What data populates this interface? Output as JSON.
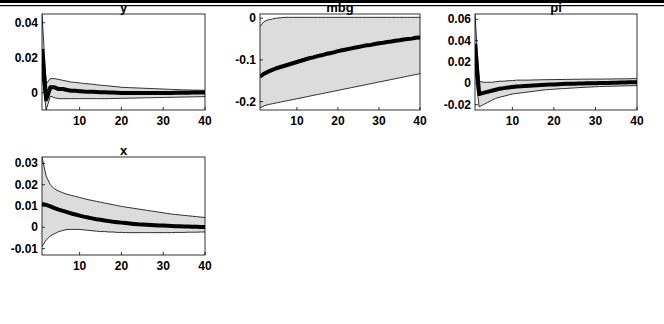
{
  "chart_data": [
    {
      "type": "line",
      "title": "y",
      "x": [
        1,
        2,
        3,
        4,
        5,
        6,
        7,
        8,
        9,
        10,
        11,
        12,
        13,
        14,
        15,
        16,
        17,
        18,
        19,
        20,
        21,
        22,
        23,
        24,
        25,
        26,
        27,
        28,
        29,
        30,
        31,
        32,
        33,
        34,
        35,
        36,
        37,
        38,
        39,
        40
      ],
      "xlim": [
        1,
        40
      ],
      "xticks": [
        10,
        20,
        30,
        40
      ],
      "ylim": [
        -0.01,
        0.045
      ],
      "yticks": [
        0,
        0.02,
        0.04
      ],
      "series": [
        {
          "color": "#000000",
          "values": [
            0.025,
            -0.004,
            0.003,
            0.003,
            0.002,
            0.002,
            0.0015,
            0.001,
            0.001,
            0.0008,
            0.0006,
            0.0005,
            0.0004,
            0.0003,
            0.0002,
            0.0001,
            0,
            0,
            -0.0001,
            -0.0002,
            -0.0002,
            -0.0003,
            -0.0003,
            -0.0003,
            -0.0003,
            -0.0003,
            -0.0003,
            -0.0003,
            -0.0002,
            -0.0002,
            -0.0002,
            -0.0002,
            -0.0001,
            -0.0001,
            -0.0001,
            -0.0001,
            0,
            0,
            0,
            0
          ],
          "upper": [
            0.045,
            0.005,
            0.008,
            0.008,
            0.0075,
            0.007,
            0.0065,
            0.006,
            0.0058,
            0.0055,
            0.0052,
            0.005,
            0.0048,
            0.0045,
            0.0042,
            0.004,
            0.0038,
            0.0035,
            0.0033,
            0.003,
            0.0029,
            0.0028,
            0.0027,
            0.0026,
            0.0025,
            0.0024,
            0.0023,
            0.0022,
            0.0021,
            0.002,
            0.0019,
            0.0018,
            0.0017,
            0.0016,
            0.0015,
            0.0015,
            0.0014,
            0.0014,
            0.0013,
            0.0013
          ],
          "lower": [
            0.01,
            -0.01,
            -0.002,
            -0.003,
            -0.0035,
            -0.0035,
            -0.0035,
            -0.0035,
            -0.0035,
            -0.0035,
            -0.0035,
            -0.0035,
            -0.0035,
            -0.0035,
            -0.0035,
            -0.0035,
            -0.0035,
            -0.0034,
            -0.0034,
            -0.0033,
            -0.0033,
            -0.0032,
            -0.0032,
            -0.0031,
            -0.0031,
            -0.003,
            -0.003,
            -0.0029,
            -0.0029,
            -0.0028,
            -0.0028,
            -0.0027,
            -0.0027,
            -0.0026,
            -0.0026,
            -0.0025,
            -0.0025,
            -0.0024,
            -0.0024,
            -0.0023
          ]
        }
      ]
    },
    {
      "type": "line",
      "title": "mbg",
      "x": [
        1,
        2,
        3,
        4,
        5,
        6,
        7,
        8,
        9,
        10,
        11,
        12,
        13,
        14,
        15,
        16,
        17,
        18,
        19,
        20,
        21,
        22,
        23,
        24,
        25,
        26,
        27,
        28,
        29,
        30,
        31,
        32,
        33,
        34,
        35,
        36,
        37,
        38,
        39,
        40
      ],
      "xlim": [
        1,
        40
      ],
      "xticks": [
        10,
        20,
        30,
        40
      ],
      "ylim": [
        -0.22,
        0.01
      ],
      "yticks": [
        -0.2,
        -0.1,
        0
      ],
      "series": [
        {
          "color": "#000000",
          "values": [
            -0.14,
            -0.133,
            -0.128,
            -0.124,
            -0.12,
            -0.117,
            -0.114,
            -0.111,
            -0.108,
            -0.105,
            -0.102,
            -0.099,
            -0.096,
            -0.094,
            -0.091,
            -0.089,
            -0.086,
            -0.084,
            -0.082,
            -0.079,
            -0.077,
            -0.075,
            -0.073,
            -0.071,
            -0.069,
            -0.067,
            -0.065,
            -0.064,
            -0.062,
            -0.06,
            -0.059,
            -0.057,
            -0.056,
            -0.054,
            -0.053,
            -0.051,
            -0.05,
            -0.049,
            -0.047,
            -0.046
          ],
          "upper": [
            -0.02,
            -0.008,
            -0.004,
            -0.002,
            0,
            0.001,
            0.002,
            0.002,
            0.002,
            0.002,
            0.002,
            0.002,
            0.002,
            0.002,
            0.002,
            0.002,
            0.002,
            0.002,
            0.002,
            0.002,
            0.002,
            0.002,
            0.002,
            0.002,
            0.002,
            0.002,
            0.002,
            0.002,
            0.002,
            0.002,
            0.002,
            0.002,
            0.002,
            0.002,
            0.002,
            0.002,
            0.002,
            0.002,
            0.002,
            0.002
          ],
          "lower": [
            -0.215,
            -0.21,
            -0.207,
            -0.205,
            -0.203,
            -0.201,
            -0.199,
            -0.197,
            -0.195,
            -0.193,
            -0.191,
            -0.189,
            -0.187,
            -0.185,
            -0.183,
            -0.181,
            -0.179,
            -0.177,
            -0.175,
            -0.173,
            -0.171,
            -0.169,
            -0.167,
            -0.165,
            -0.163,
            -0.161,
            -0.159,
            -0.157,
            -0.155,
            -0.153,
            -0.151,
            -0.149,
            -0.147,
            -0.145,
            -0.143,
            -0.141,
            -0.139,
            -0.137,
            -0.135,
            -0.133
          ]
        }
      ]
    },
    {
      "type": "line",
      "title": "pi",
      "x": [
        1,
        2,
        3,
        4,
        5,
        6,
        7,
        8,
        9,
        10,
        11,
        12,
        13,
        14,
        15,
        16,
        17,
        18,
        19,
        20,
        21,
        22,
        23,
        24,
        25,
        26,
        27,
        28,
        29,
        30,
        31,
        32,
        33,
        34,
        35,
        36,
        37,
        38,
        39,
        40
      ],
      "xlim": [
        1,
        40
      ],
      "xticks": [
        10,
        20,
        30,
        40
      ],
      "ylim": [
        -0.025,
        0.065
      ],
      "yticks": [
        -0.02,
        0,
        0.02,
        0.04,
        0.06
      ],
      "series": [
        {
          "color": "#000000",
          "values": [
            0.037,
            -0.01,
            -0.009,
            -0.008,
            -0.007,
            -0.006,
            -0.005,
            -0.0045,
            -0.004,
            -0.0035,
            -0.003,
            -0.0028,
            -0.0025,
            -0.0022,
            -0.002,
            -0.0018,
            -0.0016,
            -0.0014,
            -0.0012,
            -0.001,
            -0.0008,
            -0.0006,
            -0.0005,
            -0.0004,
            -0.0003,
            -0.0002,
            -0.0001,
            0,
            0,
            0.0001,
            0.0002,
            0.0003,
            0.0004,
            0.0005,
            0.0006,
            0.0007,
            0.0008,
            0.0009,
            0.001,
            0.001
          ],
          "upper": [
            0.065,
            0.002,
            0.001,
            0.001,
            0.001,
            0.0015,
            0.002,
            0.002,
            0.0025,
            0.0025,
            0.003,
            0.003,
            0.003,
            0.003,
            0.0032,
            0.0032,
            0.0034,
            0.0034,
            0.0035,
            0.0035,
            0.0036,
            0.0036,
            0.0037,
            0.0037,
            0.0038,
            0.0038,
            0.0039,
            0.0039,
            0.004,
            0.004,
            0.004,
            0.004,
            0.0041,
            0.0041,
            0.0042,
            0.0042,
            0.0043,
            0.0043,
            0.0044,
            0.0044
          ],
          "lower": [
            0.012,
            -0.022,
            -0.02,
            -0.018,
            -0.016,
            -0.014,
            -0.013,
            -0.012,
            -0.011,
            -0.01,
            -0.0095,
            -0.009,
            -0.0085,
            -0.008,
            -0.0075,
            -0.007,
            -0.0065,
            -0.006,
            -0.0058,
            -0.0055,
            -0.0052,
            -0.005,
            -0.0048,
            -0.0045,
            -0.0043,
            -0.004,
            -0.0038,
            -0.0036,
            -0.0034,
            -0.0032,
            -0.003,
            -0.0029,
            -0.0028,
            -0.0027,
            -0.0026,
            -0.0025,
            -0.0024,
            -0.0023,
            -0.0022,
            -0.0021
          ]
        }
      ]
    },
    {
      "type": "line",
      "title": "x",
      "x": [
        1,
        2,
        3,
        4,
        5,
        6,
        7,
        8,
        9,
        10,
        11,
        12,
        13,
        14,
        15,
        16,
        17,
        18,
        19,
        20,
        21,
        22,
        23,
        24,
        25,
        26,
        27,
        28,
        29,
        30,
        31,
        32,
        33,
        34,
        35,
        36,
        37,
        38,
        39,
        40
      ],
      "xlim": [
        1,
        40
      ],
      "xticks": [
        10,
        20,
        30,
        40
      ],
      "ylim": [
        -0.013,
        0.033
      ],
      "yticks": [
        -0.01,
        0,
        0.01,
        0.02,
        0.03
      ],
      "series": [
        {
          "color": "#000000",
          "values": [
            0.011,
            0.0105,
            0.0098,
            0.009,
            0.0083,
            0.0077,
            0.0071,
            0.0065,
            0.006,
            0.0055,
            0.005,
            0.0046,
            0.0042,
            0.0038,
            0.0035,
            0.0032,
            0.0029,
            0.0026,
            0.0024,
            0.0022,
            0.002,
            0.0018,
            0.0016,
            0.0014,
            0.0013,
            0.0012,
            0.0011,
            0.001,
            0.0009,
            0.0008,
            0.0007,
            0.0006,
            0.0005,
            0.0005,
            0.0004,
            0.0004,
            0.0003,
            0.0003,
            0.0002,
            0.0002
          ],
          "upper": [
            0.033,
            0.024,
            0.02,
            0.018,
            0.017,
            0.0162,
            0.0155,
            0.015,
            0.0145,
            0.014,
            0.0135,
            0.013,
            0.0126,
            0.0122,
            0.0118,
            0.0114,
            0.011,
            0.0106,
            0.0102,
            0.0098,
            0.0095,
            0.0092,
            0.0089,
            0.0086,
            0.0083,
            0.008,
            0.0077,
            0.0074,
            0.0071,
            0.0068,
            0.0065,
            0.0062,
            0.006,
            0.0058,
            0.0056,
            0.0054,
            0.0052,
            0.005,
            0.0048,
            0.0046
          ],
          "lower": [
            -0.009,
            -0.006,
            -0.004,
            -0.003,
            -0.002,
            -0.0015,
            -0.001,
            -0.001,
            -0.001,
            -0.001,
            -0.0012,
            -0.0014,
            -0.0016,
            -0.0018,
            -0.002,
            -0.002,
            -0.0022,
            -0.0022,
            -0.0024,
            -0.0024,
            -0.0025,
            -0.0025,
            -0.0025,
            -0.0025,
            -0.0025,
            -0.0025,
            -0.0025,
            -0.0025,
            -0.0025,
            -0.0025,
            -0.0025,
            -0.0025,
            -0.0024,
            -0.0024,
            -0.0024,
            -0.0023,
            -0.0023,
            -0.0023,
            -0.0022,
            -0.0022
          ]
        }
      ]
    }
  ]
}
